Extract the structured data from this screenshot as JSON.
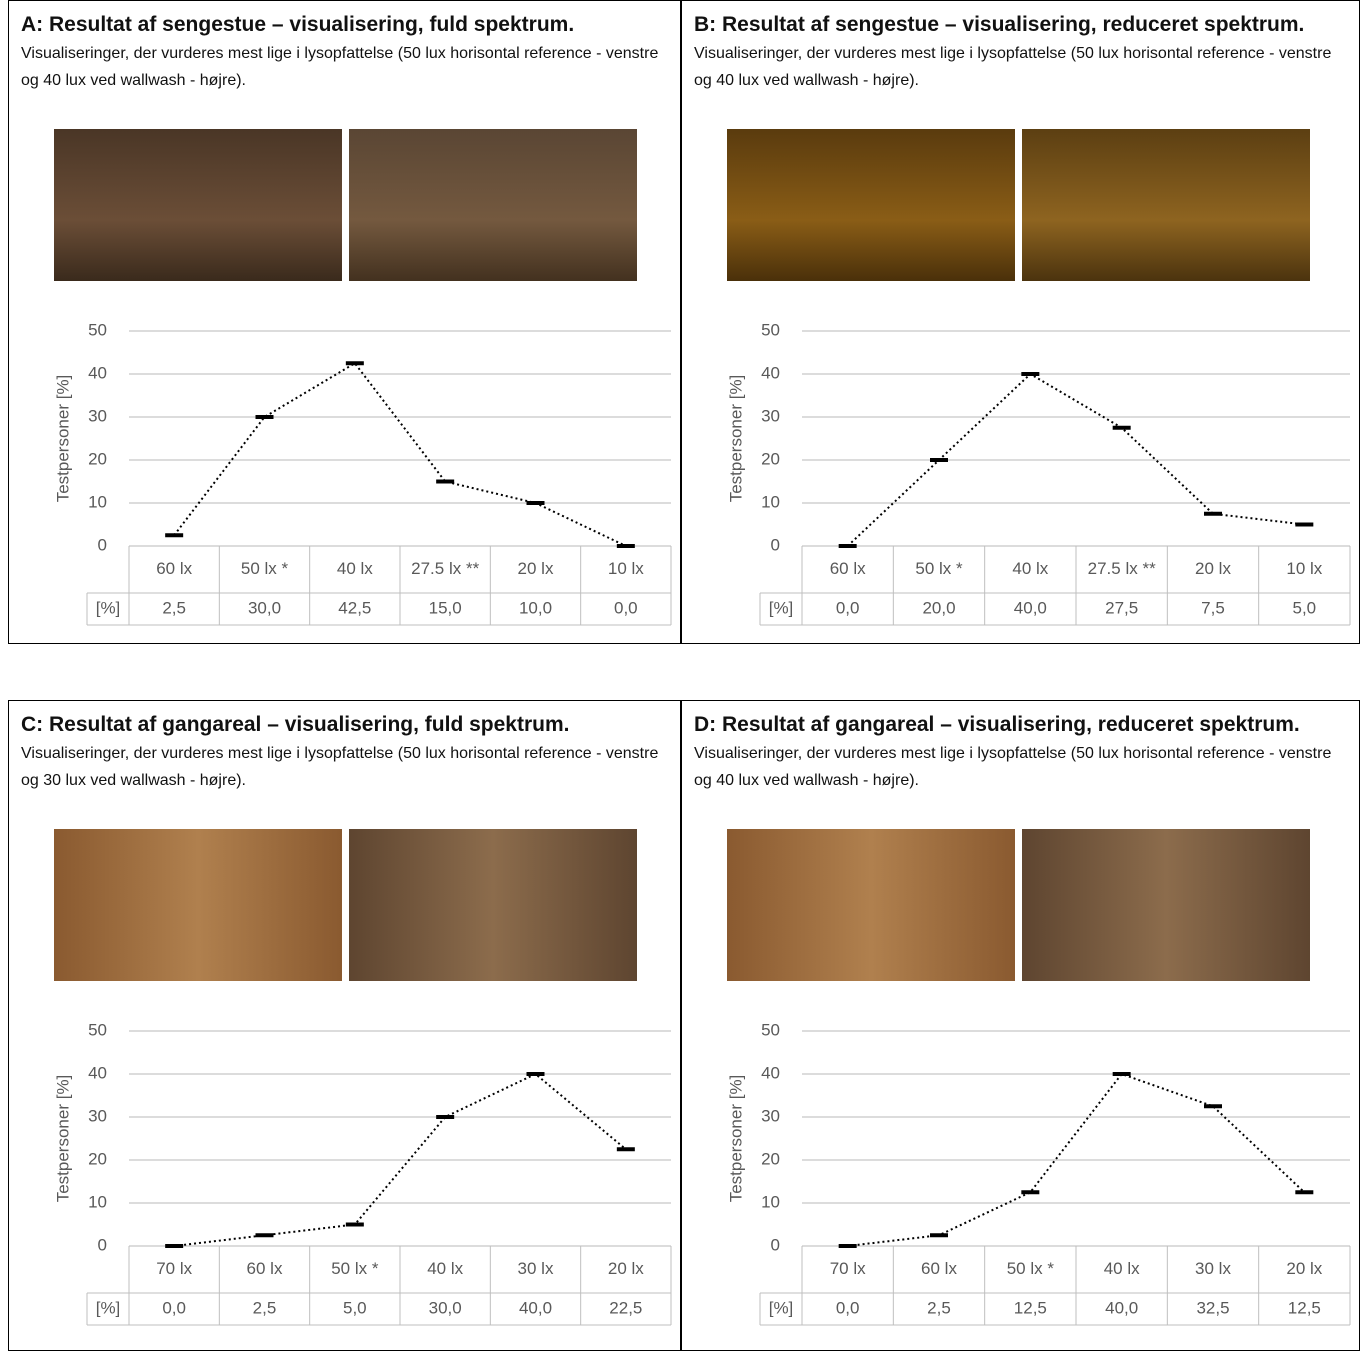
{
  "chart_data": [
    {
      "type": "line",
      "title": "A: Resultat af sengestue – visualisering, fuld spektrum.",
      "subtitle": "Visualiseringer, der vurderes mest lige i lysopfattelse (50 lux horisontal reference - venstre og 40 lux ved wallwash - højre).",
      "y_label": "Testpersoner [%]",
      "table_label": "[%]",
      "categories": [
        "60 lx",
        "50 lx *",
        "40 lx",
        "27.5 lx **",
        "20 lx",
        "10 lx"
      ],
      "values": [
        2.5,
        30,
        42.5,
        15,
        10,
        0
      ],
      "value_labels": [
        "2,5",
        "30,0",
        "42,5",
        "15,0",
        "10,0",
        "0,0"
      ],
      "color": "#000000",
      "ylim": [
        0,
        50
      ],
      "yticks": [
        0,
        10,
        20,
        30,
        40,
        50
      ],
      "grid": true
    },
    {
      "type": "line",
      "title": "B: Resultat af sengestue – visualisering, reduceret spektrum.",
      "subtitle": "Visualiseringer, der vurderes mest lige i lysopfattelse (50 lux horisontal reference - venstre og 40 lux ved wallwash - højre).",
      "y_label": "Testpersoner [%]",
      "table_label": "[%]",
      "categories": [
        "60 lx",
        "50 lx *",
        "40 lx",
        "27.5 lx  **",
        "20 lx",
        "10 lx"
      ],
      "values": [
        0,
        20,
        40,
        27.5,
        7.5,
        5
      ],
      "value_labels": [
        "0,0",
        "20,0",
        "40,0",
        "27,5",
        "7,5",
        "5,0"
      ],
      "color": "#000000",
      "ylim": [
        0,
        50
      ],
      "yticks": [
        0,
        10,
        20,
        30,
        40,
        50
      ],
      "grid": true
    },
    {
      "type": "line",
      "title": "C: Resultat af gangareal – visualisering, fuld spektrum.",
      "subtitle": "Visualiseringer, der vurderes mest lige i lysopfattelse (50 lux horisontal reference - venstre og 30 lux ved wallwash - højre).",
      "y_label": "Testpersoner [%]",
      "table_label": "[%]",
      "categories": [
        "70 lx",
        "60 lx",
        "50 lx *",
        "40 lx",
        "30 lx",
        "20 lx"
      ],
      "values": [
        0,
        2.5,
        5,
        30,
        40,
        22.5
      ],
      "value_labels": [
        "0,0",
        "2,5",
        "5,0",
        "30,0",
        "40,0",
        "22,5"
      ],
      "color": "#000000",
      "ylim": [
        0,
        50
      ],
      "yticks": [
        0,
        10,
        20,
        30,
        40,
        50
      ],
      "grid": true
    },
    {
      "type": "line",
      "title": "D: Resultat af gangareal – visualisering, reduceret spektrum.",
      "subtitle": "Visualiseringer, der vurderes mest lige i lysopfattelse (50 lux horisontal reference - venstre og 40 lux ved wallwash - højre).",
      "y_label": "Testpersoner [%]",
      "table_label": "[%]",
      "categories": [
        "70 lx",
        "60 lx",
        "50 lx *",
        "40 lx",
        "30 lx",
        "20 lx"
      ],
      "values": [
        0,
        2.5,
        12.5,
        40,
        32.5,
        12.5
      ],
      "value_labels": [
        "0,0",
        "2,5",
        "12,5",
        "40,0",
        "32,5",
        "12,5"
      ],
      "color": "#000000",
      "ylim": [
        0,
        50
      ],
      "yticks": [
        0,
        10,
        20,
        30,
        40,
        50
      ],
      "grid": true
    }
  ]
}
